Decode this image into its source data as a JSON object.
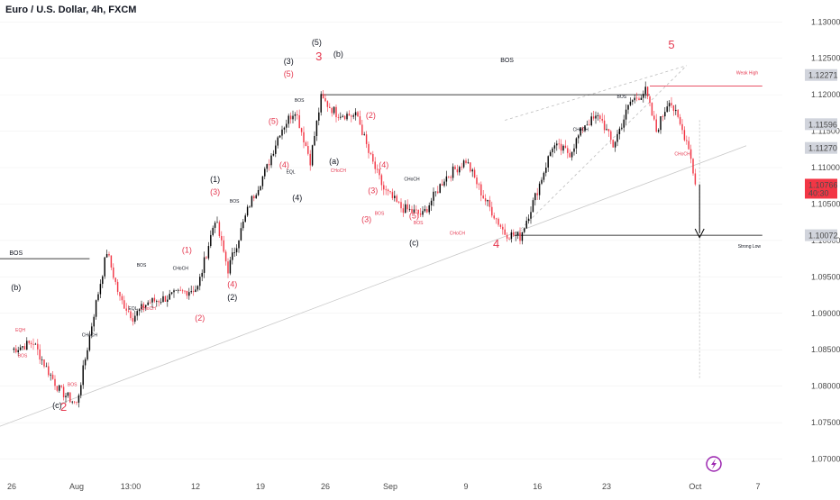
{
  "title": "Euro / U.S. Dollar, 4h, FXCM",
  "colors": {
    "up": "#000000",
    "down": "#f23645",
    "red": "#e53950",
    "grid": "#eeeeee",
    "tag_bg": "#d1d4dc",
    "price_bg": "#f23645"
  },
  "chart_data": {
    "type": "candlestick",
    "xlabel": "",
    "ylabel": "",
    "ylim": [
      1.065,
      1.133
    ],
    "x_ticks": [
      {
        "label": "26",
        "i": 0
      },
      {
        "label": "Aug",
        "i": 30
      },
      {
        "label": "13:00",
        "i": 55
      },
      {
        "label": "12",
        "i": 85
      },
      {
        "label": "19",
        "i": 115
      },
      {
        "label": "26",
        "i": 145
      },
      {
        "label": "Sep",
        "i": 175
      },
      {
        "label": "9",
        "i": 210
      },
      {
        "label": "16",
        "i": 243
      },
      {
        "label": "23",
        "i": 275
      },
      {
        "label": "Oct",
        "i": 316
      },
      {
        "label": "7",
        "i": 345
      }
    ],
    "y_ticks": [
      "1.13000",
      "1.12500",
      "1.12000",
      "1.11500",
      "1.11000",
      "1.10500",
      "1.10000",
      "1.09500",
      "1.09000",
      "1.08500",
      "1.08000",
      "1.07500",
      "1.07000"
    ],
    "price_tags": [
      {
        "value": 1.12271,
        "label": "1.12271",
        "style": "gray"
      },
      {
        "value": 1.11596,
        "label": "1.11596",
        "style": "gray"
      },
      {
        "value": 1.1127,
        "label": "1.11270",
        "style": "gray"
      },
      {
        "value": 1.10766,
        "label": "1.10766",
        "sub": "40:30",
        "style": "red"
      },
      {
        "value": 1.10072,
        "label": "1.10072",
        "style": "gray"
      }
    ],
    "anchors": [
      {
        "i": 0,
        "v": 1.085
      },
      {
        "i": 10,
        "v": 1.086
      },
      {
        "i": 16,
        "v": 1.0825
      },
      {
        "i": 22,
        "v": 1.0795
      },
      {
        "i": 30,
        "v": 1.0775
      },
      {
        "i": 38,
        "v": 1.09
      },
      {
        "i": 44,
        "v": 1.0985
      },
      {
        "i": 50,
        "v": 1.092
      },
      {
        "i": 56,
        "v": 1.0895
      },
      {
        "i": 63,
        "v": 1.0915
      },
      {
        "i": 70,
        "v": 1.092
      },
      {
        "i": 80,
        "v": 1.093
      },
      {
        "i": 86,
        "v": 1.0935
      },
      {
        "i": 94,
        "v": 1.103
      },
      {
        "i": 100,
        "v": 1.096
      },
      {
        "i": 110,
        "v": 1.105
      },
      {
        "i": 118,
        "v": 1.11
      },
      {
        "i": 124,
        "v": 1.115
      },
      {
        "i": 131,
        "v": 1.118
      },
      {
        "i": 138,
        "v": 1.111
      },
      {
        "i": 143,
        "v": 1.1195
      },
      {
        "i": 150,
        "v": 1.1175
      },
      {
        "i": 160,
        "v": 1.117
      },
      {
        "i": 165,
        "v": 1.112
      },
      {
        "i": 172,
        "v": 1.107
      },
      {
        "i": 180,
        "v": 1.1045
      },
      {
        "i": 190,
        "v": 1.1035
      },
      {
        "i": 200,
        "v": 1.1085
      },
      {
        "i": 210,
        "v": 1.111
      },
      {
        "i": 218,
        "v": 1.106
      },
      {
        "i": 228,
        "v": 1.101
      },
      {
        "i": 235,
        "v": 1.1005
      },
      {
        "i": 242,
        "v": 1.106
      },
      {
        "i": 250,
        "v": 1.113
      },
      {
        "i": 258,
        "v": 1.112
      },
      {
        "i": 265,
        "v": 1.116
      },
      {
        "i": 272,
        "v": 1.117
      },
      {
        "i": 278,
        "v": 1.113
      },
      {
        "i": 286,
        "v": 1.119
      },
      {
        "i": 293,
        "v": 1.1205
      },
      {
        "i": 298,
        "v": 1.115
      },
      {
        "i": 304,
        "v": 1.1195
      },
      {
        "i": 308,
        "v": 1.1165
      },
      {
        "i": 313,
        "v": 1.113
      },
      {
        "i": 316,
        "v": 1.1077
      }
    ],
    "levels": [
      {
        "label": "BOS",
        "from": -20,
        "to": 36,
        "v": 1.0975,
        "color": "#000000"
      },
      {
        "label": "BOS",
        "from": 143,
        "to": 295,
        "v": 1.12,
        "color": "#000000"
      },
      {
        "label": "Weak High",
        "from": 295,
        "to": 347,
        "v": 1.1212,
        "color": "#e53950"
      },
      {
        "label": "Strong Low",
        "from": 233,
        "to": 347,
        "v": 1.10072,
        "color": "#000000"
      }
    ],
    "waves": [
      {
        "t": "(c)",
        "i": 21,
        "v": 1.077,
        "c": "k"
      },
      {
        "t": "2",
        "i": 24,
        "v": 1.0766,
        "c": "r",
        "big": true
      },
      {
        "t": "(b)",
        "i": 2,
        "v": 1.0932,
        "c": "k"
      },
      {
        "t": "(1)",
        "i": 81,
        "v": 1.0983,
        "c": "r"
      },
      {
        "t": "(2)",
        "i": 87,
        "v": 1.089,
        "c": "r"
      },
      {
        "t": "(1)",
        "i": 94,
        "v": 1.108,
        "c": "k"
      },
      {
        "t": "(3)",
        "i": 94,
        "v": 1.1063,
        "c": "r"
      },
      {
        "t": "(4)",
        "i": 102,
        "v": 1.0936,
        "c": "r"
      },
      {
        "t": "(2)",
        "i": 102,
        "v": 1.0918,
        "c": "k"
      },
      {
        "t": "(5)",
        "i": 121,
        "v": 1.116,
        "c": "r"
      },
      {
        "t": "(4)",
        "i": 126,
        "v": 1.11,
        "c": "r"
      },
      {
        "t": "(4)",
        "i": 132,
        "v": 1.1055,
        "c": "k"
      },
      {
        "t": "(3)",
        "i": 128,
        "v": 1.1242,
        "c": "k"
      },
      {
        "t": "(5)",
        "i": 128,
        "v": 1.1225,
        "c": "r"
      },
      {
        "t": "3",
        "i": 142,
        "v": 1.1247,
        "c": "r",
        "big": true
      },
      {
        "t": "(5)",
        "i": 141,
        "v": 1.1268,
        "c": "k"
      },
      {
        "t": "(b)",
        "i": 151,
        "v": 1.1252,
        "c": "k"
      },
      {
        "t": "(a)",
        "i": 149,
        "v": 1.1105,
        "c": "k"
      },
      {
        "t": "(2)",
        "i": 166,
        "v": 1.1168,
        "c": "r"
      },
      {
        "t": "(4)",
        "i": 172,
        "v": 1.11,
        "c": "r"
      },
      {
        "t": "(3)",
        "i": 167,
        "v": 1.1065,
        "c": "r"
      },
      {
        "t": "(3)",
        "i": 164,
        "v": 1.1025,
        "c": "r"
      },
      {
        "t": "(5)",
        "i": 186,
        "v": 1.103,
        "c": "r"
      },
      {
        "t": "(c)",
        "i": 186,
        "v": 1.0993,
        "c": "k"
      },
      {
        "t": "4",
        "i": 224,
        "v": 1.099,
        "c": "r",
        "big": true
      },
      {
        "t": "5",
        "i": 305,
        "v": 1.1263,
        "c": "r",
        "big": true
      }
    ],
    "labels": [
      {
        "t": "BOS",
        "i": 2,
        "v": 1.098,
        "c": "k",
        "s": "m"
      },
      {
        "t": "EQH",
        "i": 4,
        "v": 1.0875,
        "c": "r",
        "s": "s"
      },
      {
        "t": "BOS",
        "i": 5,
        "v": 1.084,
        "c": "r",
        "s": "s"
      },
      {
        "t": "BOS",
        "i": 28,
        "v": 1.08,
        "c": "r",
        "s": "s"
      },
      {
        "t": "CHoCH",
        "i": 36,
        "v": 1.0868,
        "c": "k",
        "s": "s"
      },
      {
        "t": "BOS",
        "i": 60,
        "v": 1.0964,
        "c": "k",
        "s": "s"
      },
      {
        "t": "EQL",
        "i": 56,
        "v": 1.0905,
        "c": "k",
        "s": "s"
      },
      {
        "t": "CHoCH",
        "i": 63,
        "v": 1.0905,
        "c": "r",
        "s": "s"
      },
      {
        "t": "CHoCH",
        "i": 78,
        "v": 1.096,
        "c": "k",
        "s": "s"
      },
      {
        "t": "BOS",
        "i": 103,
        "v": 1.1052,
        "c": "k",
        "s": "s"
      },
      {
        "t": "BOS",
        "i": 133,
        "v": 1.119,
        "c": "k",
        "s": "s"
      },
      {
        "t": "EQL",
        "i": 129,
        "v": 1.1092,
        "c": "k",
        "s": "s"
      },
      {
        "t": "CHoCH",
        "i": 151,
        "v": 1.1094,
        "c": "r",
        "s": "s"
      },
      {
        "t": "CHoCH",
        "i": 185,
        "v": 1.1082,
        "c": "k",
        "s": "s"
      },
      {
        "t": "BOS",
        "i": 170,
        "v": 1.1035,
        "c": "r",
        "s": "s"
      },
      {
        "t": "BOS",
        "i": 188,
        "v": 1.1022,
        "c": "r",
        "s": "s"
      },
      {
        "t": "CHoCH",
        "i": 206,
        "v": 1.1008,
        "c": "r",
        "s": "s"
      },
      {
        "t": "BOS",
        "i": 229,
        "v": 1.1245,
        "c": "k",
        "s": "m"
      },
      {
        "t": "CHoCH",
        "i": 263,
        "v": 1.115,
        "c": "k",
        "s": "s"
      },
      {
        "t": "BOS",
        "i": 282,
        "v": 1.1195,
        "c": "k",
        "s": "s"
      },
      {
        "t": "CHoCH",
        "i": 310,
        "v": 1.1117,
        "c": "r",
        "s": "s"
      },
      {
        "t": "Weak High",
        "i": 340,
        "v": 1.1228,
        "c": "r",
        "s": "s"
      },
      {
        "t": "Strong Low",
        "i": 341,
        "v": 1.099,
        "c": "k",
        "s": "s"
      }
    ]
  }
}
